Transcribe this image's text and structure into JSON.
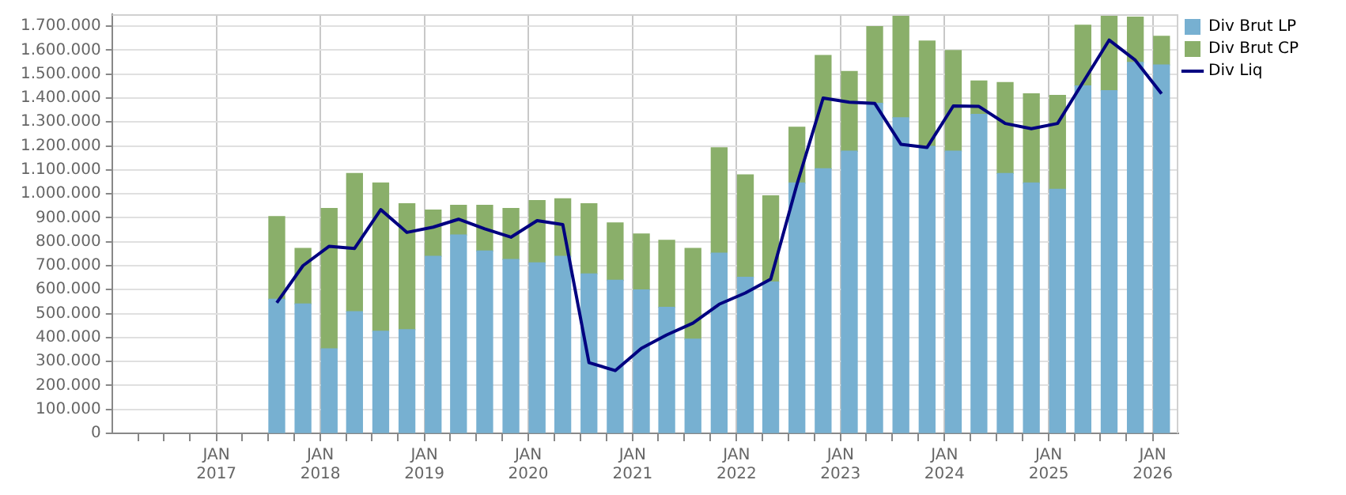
{
  "chart_data": {
    "type": "bar",
    "stacked": true,
    "legend": "top right",
    "grid": true,
    "x": [
      "2017-08",
      "2017-11",
      "2018-02",
      "2018-05",
      "2018-08",
      "2018-11",
      "2019-02",
      "2019-05",
      "2019-08",
      "2019-11",
      "2020-02",
      "2020-05",
      "2020-08",
      "2020-11",
      "2021-02",
      "2021-05",
      "2021-08",
      "2021-11",
      "2022-02",
      "2022-05",
      "2022-08",
      "2022-11",
      "2023-02",
      "2023-05",
      "2023-08",
      "2023-11",
      "2024-02",
      "2024-05",
      "2024-08",
      "2024-11",
      "2025-02",
      "2025-05",
      "2025-08",
      "2025-11",
      "2026-02"
    ],
    "series": [
      {
        "name": "Div Brut LP",
        "color": "#77b0d1",
        "values": [
          560000,
          540000,
          353000,
          508000,
          426000,
          433000,
          739000,
          828000,
          761000,
          726000,
          712000,
          739000,
          666000,
          639000,
          599000,
          526000,
          393000,
          752000,
          652000,
          632000,
          1045000,
          1105000,
          1178000,
          1378000,
          1318000,
          1198000,
          1178000,
          1332000,
          1085000,
          1045000,
          1019000,
          1451000,
          1431000,
          1549000,
          1538000
        ]
      },
      {
        "name": "Div Brut CP",
        "color": "#8aaf6a",
        "values": [
          345000,
          232000,
          586000,
          577000,
          619000,
          526000,
          193000,
          124000,
          191000,
          213000,
          260000,
          240000,
          293000,
          240000,
          233000,
          280000,
          379000,
          440000,
          427000,
          360000,
          233000,
          473000,
          333000,
          320000,
          426000,
          440000,
          420000,
          139000,
          380000,
          373000,
          392000,
          253000,
          313000,
          189000,
          120000
        ]
      },
      {
        "name": "Div Liq",
        "type": "line",
        "marker": "none",
        "line_style": "solid",
        "color": "#000080",
        "values": [
          545000,
          700000,
          781000,
          772000,
          934000,
          839000,
          861000,
          894000,
          854000,
          819000,
          888000,
          872000,
          295000,
          262000,
          355000,
          411000,
          460000,
          539000,
          586000,
          644000,
          1039000,
          1400000,
          1383000,
          1378000,
          1207000,
          1194000,
          1367000,
          1365000,
          1294000,
          1272000,
          1294000,
          1465000,
          1642000,
          1558000,
          1418000
        ]
      }
    ],
    "xlim": [
      "2016-01",
      "2026-04"
    ],
    "xticks": [
      {
        "value": "2016-04",
        "label": null
      },
      {
        "value": "2016-07",
        "label": null
      },
      {
        "value": "2016-10",
        "label": null
      },
      {
        "value": "2017-01",
        "label": "JAN\n2017"
      },
      {
        "value": "2017-04",
        "label": null
      },
      {
        "value": "2017-07",
        "label": null
      },
      {
        "value": "2017-10",
        "label": null
      },
      {
        "value": "2018-01",
        "label": "JAN\n2018"
      },
      {
        "value": "2018-04",
        "label": null
      },
      {
        "value": "2018-07",
        "label": null
      },
      {
        "value": "2018-10",
        "label": null
      },
      {
        "value": "2019-01",
        "label": "JAN\n2019"
      },
      {
        "value": "2019-04",
        "label": null
      },
      {
        "value": "2019-07",
        "label": null
      },
      {
        "value": "2019-10",
        "label": null
      },
      {
        "value": "2020-01",
        "label": "JAN\n2020"
      },
      {
        "value": "2020-04",
        "label": null
      },
      {
        "value": "2020-07",
        "label": null
      },
      {
        "value": "2020-10",
        "label": null
      },
      {
        "value": "2021-01",
        "label": "JAN\n2021"
      },
      {
        "value": "2021-04",
        "label": null
      },
      {
        "value": "2021-07",
        "label": null
      },
      {
        "value": "2021-10",
        "label": null
      },
      {
        "value": "2022-01",
        "label": "JAN\n2022"
      },
      {
        "value": "2022-04",
        "label": null
      },
      {
        "value": "2022-07",
        "label": null
      },
      {
        "value": "2022-10",
        "label": null
      },
      {
        "value": "2023-01",
        "label": "JAN\n2023"
      },
      {
        "value": "2023-04",
        "label": null
      },
      {
        "value": "2023-07",
        "label": null
      },
      {
        "value": "2023-10",
        "label": null
      },
      {
        "value": "2024-01",
        "label": "JAN\n2024"
      },
      {
        "value": "2024-04",
        "label": null
      },
      {
        "value": "2024-07",
        "label": null
      },
      {
        "value": "2024-10",
        "label": null
      },
      {
        "value": "2025-01",
        "label": "JAN\n2025"
      },
      {
        "value": "2025-04",
        "label": null
      },
      {
        "value": "2025-07",
        "label": null
      },
      {
        "value": "2025-10",
        "label": null
      },
      {
        "value": "2026-01",
        "label": "JAN\n2026"
      }
    ],
    "ylim": [
      0,
      1750000
    ],
    "yticks": [
      {
        "value": 0,
        "label": "0"
      },
      {
        "value": 100000,
        "label": "100.000"
      },
      {
        "value": 200000,
        "label": "200.000"
      },
      {
        "value": 300000,
        "label": "300.000"
      },
      {
        "value": 400000,
        "label": "400.000"
      },
      {
        "value": 500000,
        "label": "500.000"
      },
      {
        "value": 600000,
        "label": "600.000"
      },
      {
        "value": 700000,
        "label": "700.000"
      },
      {
        "value": 800000,
        "label": "800.000"
      },
      {
        "value": 900000,
        "label": "900.000"
      },
      {
        "value": 1000000,
        "label": "1.000.000"
      },
      {
        "value": 1100000,
        "label": "1.100.000"
      },
      {
        "value": 1200000,
        "label": "1.200.000"
      },
      {
        "value": 1300000,
        "label": "1.300.000"
      },
      {
        "value": 1400000,
        "label": "1.400.000"
      },
      {
        "value": 1500000,
        "label": "1.500.000"
      },
      {
        "value": 1600000,
        "label": "1.600.000"
      },
      {
        "value": 1700000,
        "label": "1.700.000"
      }
    ]
  }
}
